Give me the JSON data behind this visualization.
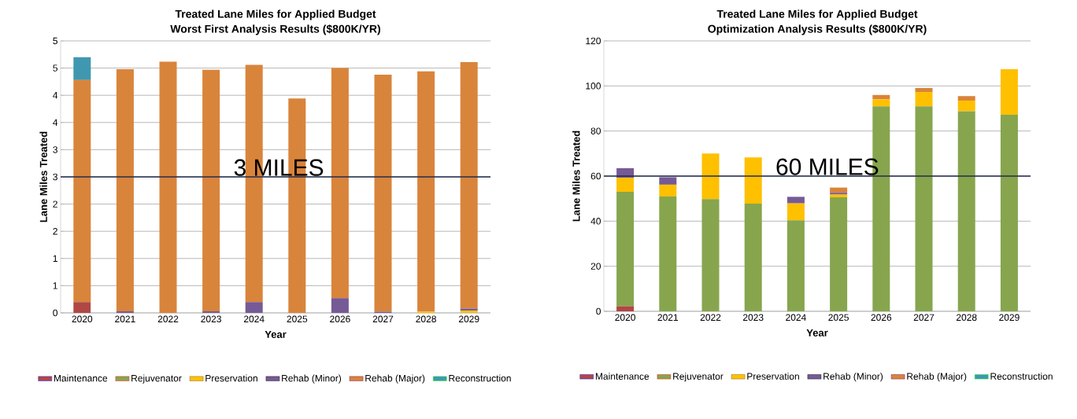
{
  "chart_data": [
    {
      "type": "bar",
      "stacked": true,
      "title": "Treated Lane Miles for Applied Budget",
      "subtitle": "Worst First Analysis Results ($800K/YR)",
      "xlabel": "Year",
      "ylabel": "Lane Miles Treated",
      "categories": [
        "2020",
        "2021",
        "2022",
        "2023",
        "2024",
        "2025",
        "2026",
        "2027",
        "2028",
        "2029"
      ],
      "series": [
        {
          "name": "Maintenance",
          "color": "#b04744",
          "values": [
            0.2,
            0,
            0,
            0,
            0,
            0,
            0,
            0,
            0,
            0
          ]
        },
        {
          "name": "Rejuvenator",
          "color": "#87a54d",
          "values": [
            0,
            0,
            0,
            0,
            0,
            0,
            0,
            0,
            0,
            0
          ]
        },
        {
          "name": "Preservation",
          "color": "#ffc000",
          "values": [
            0,
            0,
            0,
            0,
            0,
            0,
            0,
            0,
            0.02,
            0.04
          ]
        },
        {
          "name": "Rehab (Minor)",
          "color": "#765a96",
          "values": [
            0,
            0.03,
            0,
            0.03,
            0.2,
            0,
            0.27,
            0.02,
            0,
            0.04
          ]
        },
        {
          "name": "Rehab (Major)",
          "color": "#d9843b",
          "values": [
            4.08,
            4.45,
            4.62,
            4.44,
            4.36,
            3.94,
            4.23,
            4.36,
            4.42,
            4.53
          ]
        },
        {
          "name": "Reconstruction",
          "color": "#3f98af",
          "values": [
            0.42,
            0,
            0,
            0,
            0,
            0,
            0,
            0,
            0,
            0
          ]
        }
      ],
      "ylim": [
        0,
        5
      ],
      "yticks": [
        0,
        {
          "value": 0.5,
          "label": "1"
        },
        1,
        {
          "value": 1.5,
          "label": "2"
        },
        2,
        {
          "value": 2.5,
          "label": "3"
        },
        3,
        {
          "value": 3.5,
          "label": "4"
        },
        4,
        {
          "value": 4.5,
          "label": "5"
        },
        5
      ],
      "ref_lines": [
        {
          "axis": "y",
          "value": 2.5,
          "label": "3 MILES",
          "color": "#1f2d4e"
        }
      ],
      "grid": "y",
      "legend": "bottom"
    },
    {
      "type": "bar",
      "stacked": true,
      "title": "Treated Lane Miles for Applied Budget",
      "subtitle": "Optimization Analysis Results ($800K/YR)",
      "xlabel": "Year",
      "ylabel": "Lane Miles Treated",
      "categories": [
        "2020",
        "2021",
        "2022",
        "2023",
        "2024",
        "2025",
        "2026",
        "2027",
        "2028",
        "2029"
      ],
      "series": [
        {
          "name": "Maintenance",
          "color": "#b04744",
          "values": [
            2.3,
            0,
            0,
            0,
            0,
            0,
            0,
            0,
            0,
            0
          ]
        },
        {
          "name": "Rejuvenator",
          "color": "#87a54d",
          "values": [
            50.7,
            50.9,
            49.8,
            47.8,
            40.4,
            50.6,
            91.0,
            91.0,
            88.8,
            87.2
          ]
        },
        {
          "name": "Preservation",
          "color": "#ffc000",
          "values": [
            6.3,
            5.3,
            20.2,
            20.5,
            7.5,
            1.2,
            3.1,
            6.3,
            4.7,
            20.2
          ]
        },
        {
          "name": "Rehab (Minor)",
          "color": "#765a96",
          "values": [
            4.2,
            3.3,
            0,
            0,
            2.9,
            0.8,
            0,
            0,
            0,
            0
          ]
        },
        {
          "name": "Rehab (Major)",
          "color": "#d9843b",
          "values": [
            0,
            0,
            0,
            0,
            0,
            2.3,
            1.9,
            1.8,
            2.0,
            0
          ]
        },
        {
          "name": "Reconstruction",
          "color": "#3f98af",
          "values": [
            0,
            0,
            0,
            0,
            0,
            0,
            0,
            0,
            0,
            0
          ]
        }
      ],
      "ylim": [
        0,
        120
      ],
      "yticks": [
        0,
        20,
        40,
        60,
        80,
        100,
        120
      ],
      "ref_lines": [
        {
          "axis": "y",
          "value": 60,
          "label": "60 MILES",
          "color": "#1f2d4e"
        }
      ],
      "grid": "y",
      "legend": "bottom"
    }
  ]
}
